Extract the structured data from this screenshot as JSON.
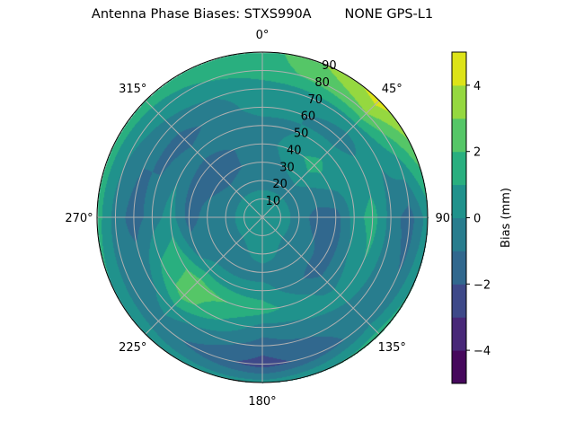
{
  "chart_data": {
    "type": "heatmap",
    "subtype": "polar filled contour",
    "title": "Antenna Phase Biases: STXS990A        NONE GPS-L1",
    "colorbar_label": "Bias (mm)",
    "colormap": "viridis",
    "levels": [
      -5,
      -4,
      -3,
      -2,
      -1,
      0,
      1,
      2,
      3,
      4,
      5
    ],
    "level_colors": [
      "#46085c",
      "#482878",
      "#3e4989",
      "#31688e",
      "#287d8e",
      "#20928c",
      "#29af7f",
      "#55c667",
      "#95d840",
      "#dde318"
    ],
    "colorbar_ticks": [
      "−4",
      "−2",
      "0",
      "2",
      "4"
    ],
    "colorbar_tick_values": [
      -4,
      -2,
      0,
      2,
      4
    ],
    "theta_direction": "clockwise",
    "theta_zero": "top",
    "theta_ticks": [
      "0°",
      "45°",
      "90°",
      "135°",
      "180°",
      "225°",
      "270°",
      "315°"
    ],
    "r_ticks": [
      "10",
      "20",
      "30",
      "40",
      "50",
      "60",
      "70",
      "80",
      "90"
    ],
    "r_range": [
      0,
      90
    ],
    "grid": true,
    "azimuth_deg": [
      0,
      45,
      90,
      135,
      180,
      225,
      270,
      315
    ],
    "zenith_deg": [
      0,
      10,
      20,
      30,
      40,
      50,
      60,
      70,
      80,
      90
    ],
    "bias_mm_estimated": [
      [
        0.5,
        0.5,
        -0.5,
        -0.5,
        -0.5,
        -0.5,
        0.5,
        0.5,
        1.5,
        1.5
      ],
      [
        0.5,
        0.5,
        -0.5,
        0.5,
        1.5,
        0.5,
        -0.5,
        0.5,
        3.0,
        4.5
      ],
      [
        0.5,
        0.5,
        -0.5,
        -1.5,
        -1.5,
        0.5,
        1.5,
        -0.5,
        -1.5,
        0.5
      ],
      [
        0.5,
        0.5,
        -0.5,
        -0.5,
        -1.5,
        -0.5,
        0.5,
        -0.5,
        -0.5,
        1.5
      ],
      [
        0.5,
        0.5,
        0.5,
        -0.5,
        0.5,
        1.5,
        -0.5,
        -1.5,
        -2.5,
        0.5
      ],
      [
        0.5,
        0.5,
        -0.5,
        -0.5,
        0.5,
        2.5,
        2.5,
        0.5,
        -0.5,
        0.5
      ],
      [
        0.5,
        0.5,
        -0.5,
        -0.5,
        -1.5,
        0.5,
        -0.5,
        -1.5,
        -0.5,
        1.5
      ],
      [
        0.5,
        0.5,
        -0.5,
        -1.5,
        -1.5,
        -0.5,
        -1.5,
        -0.5,
        0.5,
        1.5
      ]
    ]
  }
}
